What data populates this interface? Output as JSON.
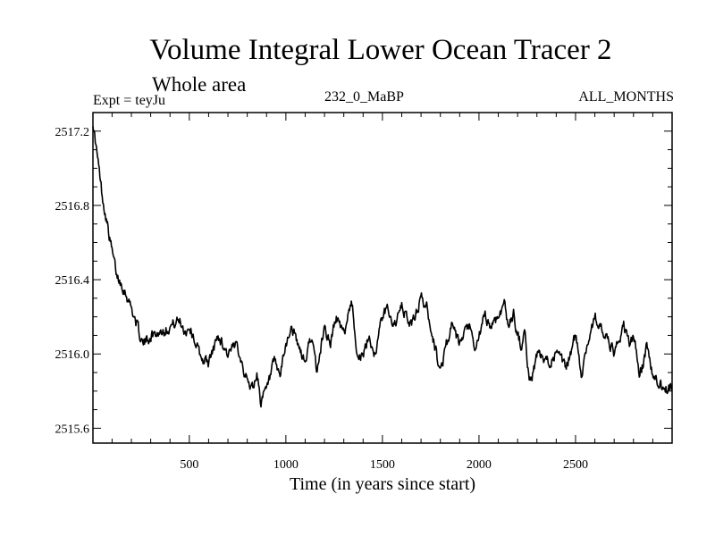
{
  "chart_data": {
    "type": "line",
    "title": "Volume Integral Lower Ocean Tracer 2",
    "subtitle": "Whole area",
    "experiment_label": "Expt = teyJu",
    "period_label": "232_0_MaBP",
    "months_label": "ALL_MONTHS",
    "xlabel": "Time (in years since start)",
    "ylabel": "",
    "xlim": [
      1,
      3000
    ],
    "ylim": [
      2515.52,
      2517.3
    ],
    "x_ticks": [
      500,
      1000,
      1500,
      2000,
      2500
    ],
    "x_tick_labels": [
      "500",
      "1000",
      "1500",
      "2000",
      "2500"
    ],
    "y_ticks": [
      2515.6,
      2516.0,
      2516.4,
      2516.8,
      2517.2
    ],
    "y_tick_labels": [
      "2515.6",
      "2516.0",
      "2516.4",
      "2516.8",
      "2517.2"
    ],
    "line_color": "#000000",
    "series": [
      {
        "name": "Volume Integral Lower Ocean Tracer 2",
        "x": [
          1,
          25,
          50,
          75,
          100,
          125,
          150,
          175,
          200,
          230,
          260,
          300,
          350,
          400,
          450,
          480,
          500,
          520,
          560,
          600,
          650,
          700,
          750,
          800,
          830,
          850,
          870,
          900,
          940,
          970,
          1000,
          1030,
          1060,
          1100,
          1130,
          1160,
          1200,
          1230,
          1260,
          1300,
          1340,
          1370,
          1400,
          1430,
          1460,
          1500,
          1530,
          1560,
          1600,
          1650,
          1700,
          1730,
          1750,
          1780,
          1800,
          1830,
          1860,
          1900,
          1950,
          1980,
          2000,
          2030,
          2060,
          2100,
          2130,
          2150,
          2180,
          2200,
          2220,
          2240,
          2260,
          2280,
          2300,
          2350,
          2400,
          2450,
          2500,
          2530,
          2560,
          2600,
          2650,
          2700,
          2750,
          2780,
          2800,
          2830,
          2850,
          2870,
          2900,
          2930,
          2960,
          3000
        ],
        "values": [
          2517.25,
          2517.05,
          2516.85,
          2516.7,
          2516.55,
          2516.42,
          2516.38,
          2516.32,
          2516.25,
          2516.15,
          2516.05,
          2516.1,
          2516.12,
          2516.15,
          2516.18,
          2516.12,
          2516.15,
          2516.1,
          2515.98,
          2515.95,
          2516.1,
          2516.0,
          2516.05,
          2515.85,
          2515.82,
          2515.9,
          2515.75,
          2515.8,
          2515.95,
          2515.88,
          2516.05,
          2516.15,
          2516.05,
          2515.95,
          2516.1,
          2515.9,
          2516.15,
          2516.05,
          2516.2,
          2516.1,
          2516.3,
          2516.0,
          2515.98,
          2516.1,
          2516.0,
          2516.2,
          2516.25,
          2516.15,
          2516.25,
          2516.15,
          2516.3,
          2516.25,
          2516.15,
          2516.0,
          2515.9,
          2516.05,
          2516.15,
          2516.05,
          2516.15,
          2516.0,
          2516.1,
          2516.2,
          2516.15,
          2516.2,
          2516.28,
          2516.15,
          2516.22,
          2516.1,
          2516.05,
          2516.1,
          2515.85,
          2515.9,
          2516.0,
          2515.95,
          2516.0,
          2515.92,
          2516.1,
          2515.9,
          2516.05,
          2516.2,
          2516.1,
          2516.0,
          2516.15,
          2516.05,
          2516.1,
          2515.9,
          2515.95,
          2516.05,
          2515.88,
          2515.85,
          2515.8,
          2515.82
        ]
      }
    ]
  }
}
